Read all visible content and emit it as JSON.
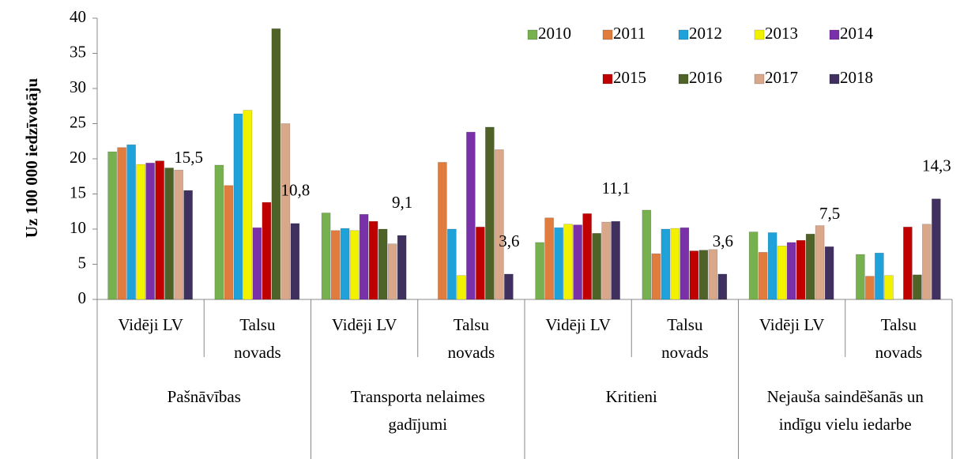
{
  "chart_data": {
    "type": "bar",
    "y_label": "Uz 100 000 iedzīvotāju",
    "categories": [
      "Vidēji LV",
      "Talsu novads",
      "Vidēji LV",
      "Talsu novads",
      "Vidēji LV",
      "Talsu novads",
      "Vidēji LV",
      "Talsu novads"
    ],
    "groups": [
      "Pašnāvības",
      "Transporta nelaimes gadījumi",
      "Kritieni",
      "Nejauša saindēšanās un indīgu vielu iedarbe"
    ],
    "series": [
      {
        "name": "2010",
        "color": "#77b04e",
        "values": [
          21.0,
          19.1,
          12.3,
          null,
          8.1,
          12.7,
          9.6,
          6.4
        ]
      },
      {
        "name": "2011",
        "color": "#e07c3e",
        "values": [
          21.6,
          16.2,
          9.8,
          19.5,
          11.6,
          6.5,
          6.7,
          3.3
        ]
      },
      {
        "name": "2012",
        "color": "#1ea2d9",
        "values": [
          22.0,
          26.4,
          10.1,
          10.0,
          10.2,
          10.0,
          9.5,
          6.6
        ]
      },
      {
        "name": "2013",
        "color": "#f2f200",
        "values": [
          19.2,
          26.9,
          9.8,
          3.4,
          10.7,
          10.1,
          7.6,
          3.4
        ]
      },
      {
        "name": "2014",
        "color": "#7a30a8",
        "values": [
          19.4,
          10.2,
          12.1,
          23.8,
          10.6,
          10.2,
          8.1,
          null
        ]
      },
      {
        "name": "2015",
        "color": "#c00000",
        "values": [
          19.7,
          13.8,
          11.1,
          10.3,
          12.2,
          6.9,
          8.4,
          10.3
        ]
      },
      {
        "name": "2016",
        "color": "#4f6228",
        "values": [
          18.7,
          38.5,
          10.0,
          24.5,
          9.4,
          7.0,
          9.3,
          3.5
        ]
      },
      {
        "name": "2017",
        "color": "#d9a88a",
        "values": [
          18.4,
          25.0,
          7.9,
          21.3,
          11.0,
          7.1,
          10.5,
          10.7
        ]
      },
      {
        "name": "2018",
        "color": "#403060",
        "values": [
          15.5,
          10.8,
          9.1,
          3.6,
          11.1,
          3.6,
          7.5,
          14.3
        ],
        "value_labels": [
          "15,5",
          "10,8",
          "9,1",
          "3,6",
          "11,1",
          "3,6",
          "7,5",
          "14,3"
        ]
      }
    ],
    "ylim": [
      0,
      40
    ],
    "yticks": [
      0,
      5,
      10,
      15,
      20,
      25,
      30,
      35,
      40
    ],
    "grid": false
  }
}
